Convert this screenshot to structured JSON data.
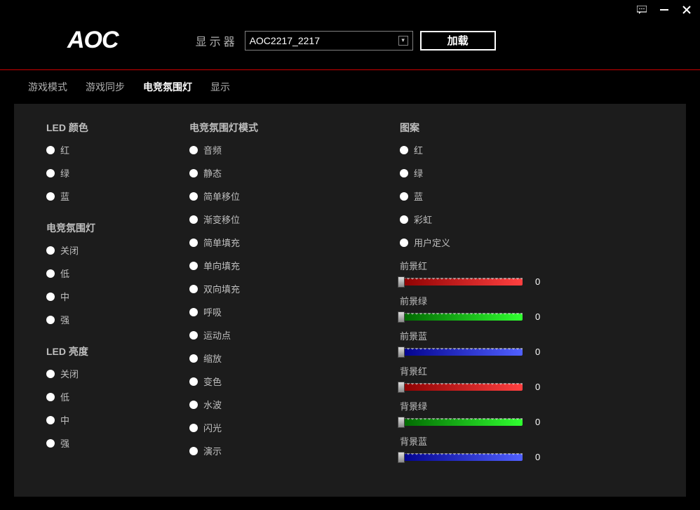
{
  "window": {
    "logo_text": "AOC",
    "monitor_label": "显示器",
    "monitor_value": "AOC2217_2217",
    "load_button": "加载"
  },
  "tabs": [
    {
      "label": "游戏模式",
      "active": false
    },
    {
      "label": "游戏同步",
      "active": false
    },
    {
      "label": "电竞氛围灯",
      "active": true
    },
    {
      "label": "显示",
      "active": false
    }
  ],
  "col1": {
    "sections": [
      {
        "title": "LED 颜色",
        "items": [
          "红",
          "绿",
          "蓝"
        ]
      },
      {
        "title": "电竞氛围灯",
        "items": [
          "关闭",
          "低",
          "中",
          "强"
        ]
      },
      {
        "title": "LED 亮度",
        "items": [
          "关闭",
          "低",
          "中",
          "强"
        ]
      }
    ]
  },
  "col2": {
    "title": "电竞氛围灯模式",
    "items": [
      "音频",
      "静态",
      "简单移位",
      "渐变移位",
      "简单填充",
      "单向填充",
      "双向填充",
      "呼吸",
      "运动点",
      "缩放",
      "变色",
      "水波",
      "闪光",
      "演示"
    ]
  },
  "col3": {
    "pattern_title": "图案",
    "pattern_items": [
      "红",
      "绿",
      "蓝",
      "彩虹",
      "用户定义"
    ],
    "sliders": [
      {
        "label": "前景红",
        "value": 0,
        "color_start": "#8b0000",
        "color_end": "#ff4040"
      },
      {
        "label": "前景绿",
        "value": 0,
        "color_start": "#006400",
        "color_end": "#30ff30"
      },
      {
        "label": "前景蓝",
        "value": 0,
        "color_start": "#00008b",
        "color_end": "#5060ff"
      },
      {
        "label": "背景红",
        "value": 0,
        "color_start": "#8b0000",
        "color_end": "#ff4040"
      },
      {
        "label": "背景绿",
        "value": 0,
        "color_start": "#006400",
        "color_end": "#30ff30"
      },
      {
        "label": "背景蓝",
        "value": 0,
        "color_start": "#00008b",
        "color_end": "#5060ff"
      }
    ]
  },
  "colors": {
    "background": "#000000",
    "panel": "#1c1c1c",
    "accent_line": "#cc0000",
    "text": "#ffffff",
    "text_muted": "#bfbfbf"
  }
}
